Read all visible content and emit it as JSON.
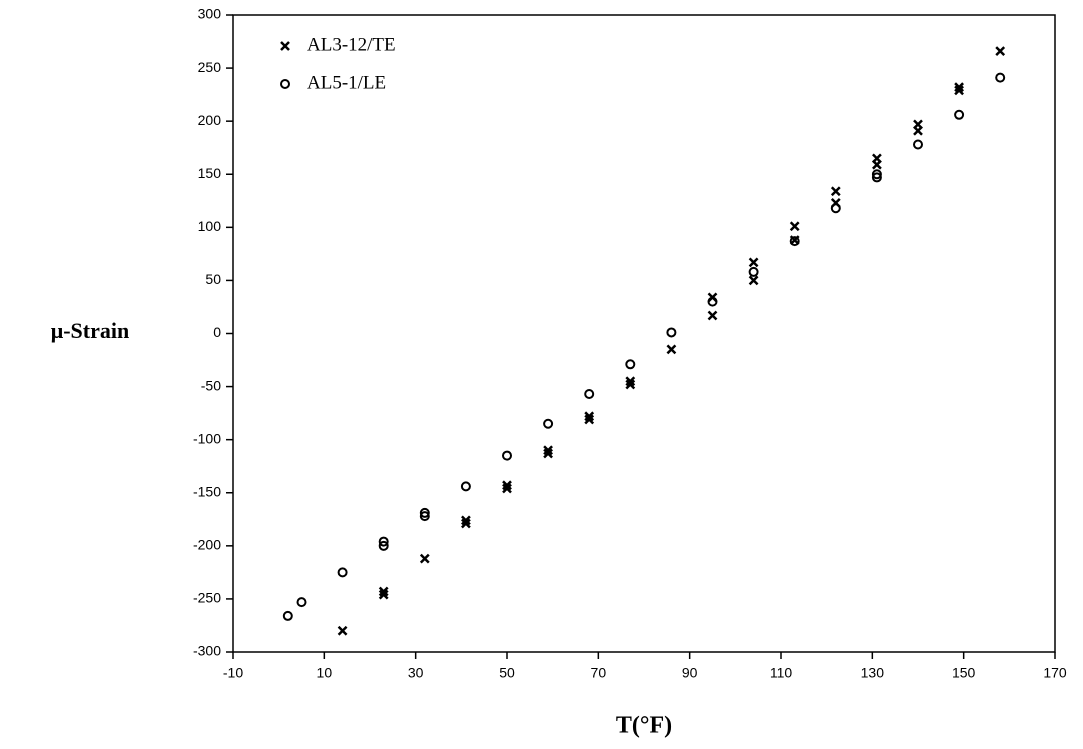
{
  "chart_data": {
    "type": "scatter",
    "xlabel": "T(°F)",
    "ylabel": "μ-Strain",
    "xlim": [
      -10,
      170
    ],
    "xticks": [
      -10,
      10,
      30,
      50,
      70,
      90,
      110,
      130,
      150,
      170
    ],
    "ylim": [
      -300,
      300
    ],
    "yticks": [
      -300,
      -250,
      -200,
      -150,
      -100,
      -50,
      0,
      50,
      100,
      150,
      200,
      250,
      300
    ],
    "legend": "upper left",
    "series": [
      {
        "name": "AL3-12/TE",
        "marker": "x",
        "color": "#000000",
        "x": [
          14,
          23,
          23,
          32,
          41,
          41,
          50,
          50,
          59,
          59,
          68,
          68,
          77,
          77,
          86,
          95,
          95,
          104,
          104,
          113,
          113,
          122,
          122,
          131,
          131,
          140,
          140,
          149,
          149,
          158
        ],
        "values": [
          -280,
          -246,
          -243,
          -212,
          -179,
          -176,
          -146,
          -143,
          -113,
          -110,
          -81,
          -78,
          -48,
          -45,
          -15,
          17,
          34,
          50,
          67,
          88,
          101,
          123,
          134,
          159,
          165,
          191,
          197,
          229,
          232,
          266
        ]
      },
      {
        "name": "AL5-1/LE",
        "marker": "o",
        "color": "#000000",
        "x": [
          2,
          5,
          14,
          23,
          23,
          32,
          32,
          41,
          50,
          59,
          68,
          77,
          86,
          95,
          104,
          113,
          122,
          131,
          131,
          140,
          149,
          158
        ],
        "values": [
          -266,
          -253,
          -225,
          -200,
          -196,
          -172,
          -169,
          -144,
          -115,
          -85,
          -57,
          -29,
          1,
          30,
          58,
          87,
          118,
          147,
          150,
          178,
          206,
          241
        ]
      }
    ]
  }
}
